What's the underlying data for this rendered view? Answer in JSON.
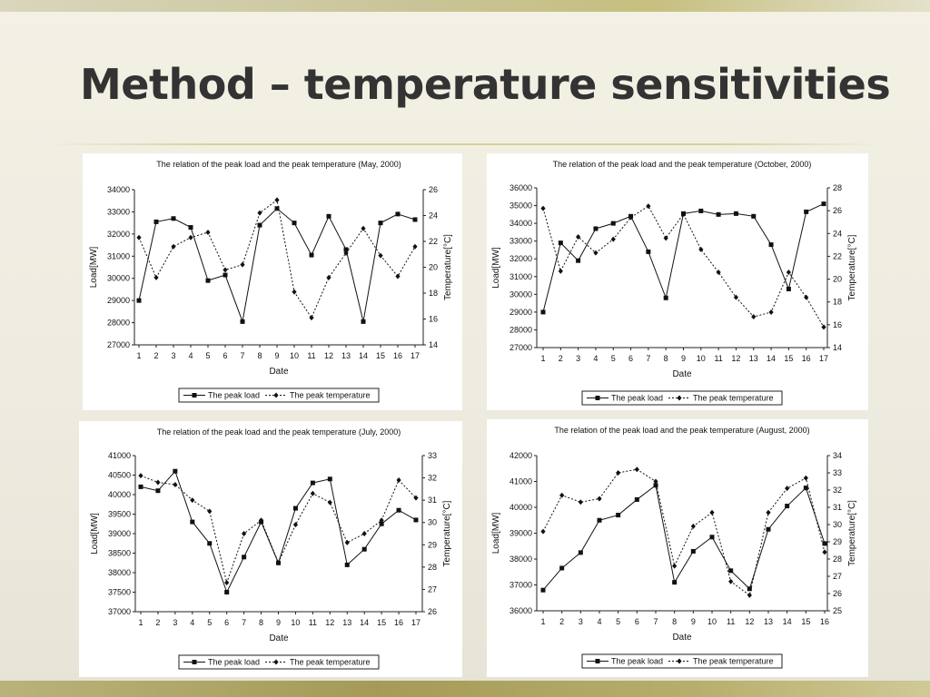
{
  "slide": {
    "title": "Method – temperature sensitivities"
  },
  "chart_data": [
    {
      "type": "line",
      "title": "The relation of the peak load and the peak temperature (May, 2000)",
      "xlabel": "Date",
      "ylabel": "Load[MW]",
      "y2label": "Temperature[°C]",
      "x": [
        1,
        2,
        3,
        4,
        5,
        6,
        7,
        8,
        9,
        10,
        11,
        12,
        13,
        14,
        15,
        16,
        17
      ],
      "ylim": [
        27000,
        34000
      ],
      "yticks": [
        27000,
        28000,
        29000,
        30000,
        31000,
        32000,
        33000,
        34000
      ],
      "y2lim": [
        14,
        26
      ],
      "y2ticks": [
        14,
        16,
        18,
        20,
        22,
        24,
        26
      ],
      "series": [
        {
          "name": "The peak load",
          "axis": "left",
          "style": "solid",
          "marker": "square",
          "values": [
            29000,
            32550,
            32700,
            32300,
            29900,
            30150,
            28050,
            32400,
            33150,
            32500,
            31050,
            32800,
            31300,
            28050,
            32500,
            32900,
            32650
          ]
        },
        {
          "name": "The peak temperature",
          "axis": "right",
          "style": "dotted",
          "marker": "diamond",
          "values": [
            22.3,
            19.2,
            21.6,
            22.3,
            22.7,
            19.8,
            20.2,
            24.2,
            25.2,
            18.1,
            16.1,
            19.2,
            21.1,
            23,
            20.9,
            19.3,
            21.6
          ]
        }
      ],
      "legend": "bottom"
    },
    {
      "type": "line",
      "title": "The relation of the peak load and the peak temperature (October, 2000)",
      "xlabel": "Date",
      "ylabel": "Load[MW]",
      "y2label": "Temperature[°C]",
      "x": [
        1,
        2,
        3,
        4,
        5,
        6,
        7,
        8,
        9,
        10,
        11,
        12,
        13,
        14,
        15,
        16,
        17
      ],
      "ylim": [
        27000,
        36000
      ],
      "yticks": [
        27000,
        28000,
        29000,
        30000,
        31000,
        32000,
        33000,
        34000,
        35000,
        36000
      ],
      "y2lim": [
        14,
        28
      ],
      "y2ticks": [
        14,
        16,
        18,
        20,
        22,
        24,
        26,
        28
      ],
      "series": [
        {
          "name": "The peak load",
          "axis": "left",
          "style": "solid",
          "marker": "square",
          "values": [
            29000,
            32900,
            31900,
            33700,
            34000,
            34400,
            32400,
            29800,
            34550,
            34700,
            34500,
            34550,
            34400,
            32800,
            30300,
            34650,
            35100
          ]
        },
        {
          "name": "The peak temperature",
          "axis": "right",
          "style": "dotted",
          "marker": "diamond",
          "values": [
            26.2,
            20.7,
            23.7,
            22.3,
            23.5,
            25.4,
            26.4,
            23.6,
            25.7,
            22.6,
            20.6,
            18.4,
            16.7,
            17.1,
            20.6,
            18.4,
            15.8
          ]
        }
      ],
      "legend": "bottom"
    },
    {
      "type": "line",
      "title": "The relation of the peak load and the peak temperature (July, 2000)",
      "xlabel": "Date",
      "ylabel": "Load[MW]",
      "y2label": "Temperature[°C]",
      "x": [
        1,
        2,
        3,
        4,
        5,
        6,
        7,
        8,
        9,
        10,
        11,
        12,
        13,
        14,
        15,
        16,
        17
      ],
      "ylim": [
        37000,
        41000
      ],
      "yticks": [
        37000,
        37500,
        38000,
        38500,
        39000,
        39500,
        40000,
        40500,
        41000
      ],
      "y2lim": [
        26,
        33
      ],
      "y2ticks": [
        26,
        27,
        28,
        29,
        30,
        31,
        32,
        33
      ],
      "series": [
        {
          "name": "The peak load",
          "axis": "left",
          "style": "solid",
          "marker": "square",
          "values": [
            40200,
            40100,
            40600,
            39300,
            38750,
            37500,
            38400,
            39300,
            38250,
            39650,
            40300,
            40400,
            38200,
            38600,
            39250,
            39600,
            39350
          ]
        },
        {
          "name": "The peak temperature",
          "axis": "right",
          "style": "dotted",
          "marker": "diamond",
          "values": [
            32.1,
            31.8,
            31.7,
            31,
            30.5,
            27.3,
            29.5,
            30.1,
            28.2,
            29.9,
            31.3,
            30.9,
            29.1,
            29.5,
            30.1,
            31.9,
            31.1
          ]
        }
      ],
      "legend": "bottom"
    },
    {
      "type": "line",
      "title": "The relation of the peak load and the peak temperature (August, 2000)",
      "xlabel": "Date",
      "ylabel": "Load[MW]",
      "y2label": "Temperature[°C]",
      "x": [
        1,
        2,
        3,
        4,
        5,
        6,
        7,
        8,
        9,
        10,
        11,
        12,
        13,
        14,
        15,
        16
      ],
      "ylim": [
        36000,
        42000
      ],
      "yticks": [
        36000,
        37000,
        38000,
        39000,
        40000,
        41000,
        42000
      ],
      "y2lim": [
        25,
        34
      ],
      "y2ticks": [
        25,
        26,
        27,
        28,
        29,
        30,
        31,
        32,
        33,
        34
      ],
      "series": [
        {
          "name": "The peak load",
          "axis": "left",
          "style": "solid",
          "marker": "square",
          "values": [
            36800,
            37650,
            38250,
            39500,
            39700,
            40300,
            40850,
            37100,
            38300,
            38850,
            37550,
            36850,
            39150,
            40050,
            40750,
            38600
          ]
        },
        {
          "name": "The peak temperature",
          "axis": "right",
          "style": "dotted",
          "marker": "diamond",
          "values": [
            29.6,
            31.7,
            31.3,
            31.5,
            33,
            33.2,
            32.5,
            27.6,
            29.9,
            30.7,
            26.7,
            25.9,
            30.7,
            32.1,
            32.7,
            28.4
          ]
        }
      ],
      "legend": "bottom"
    }
  ]
}
